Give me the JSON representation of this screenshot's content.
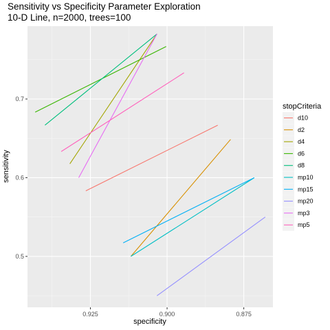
{
  "chart_data": {
    "type": "line",
    "title": "Sensitivity vs Specificity Parameter Exploration",
    "subtitle": "10-D Line, n=2000, trees=100",
    "xlabel": "specificity",
    "ylabel": "sensitivity",
    "x_reversed": true,
    "xlim": [
      0.8655,
      0.9455
    ],
    "ylim": [
      0.4353,
      0.7926
    ],
    "x_ticks": [
      0.925,
      0.9,
      0.875
    ],
    "x_tick_labels": [
      "0.925",
      "0.900",
      "0.875"
    ],
    "y_ticks": [
      0.5,
      0.6,
      0.7
    ],
    "y_tick_labels": [
      "0.5",
      "0.6",
      "0.7"
    ],
    "grid": true,
    "background": "#ebebeb",
    "legend": {
      "title": "stopCriteria",
      "position": "right"
    },
    "series": [
      {
        "name": "d10",
        "color": "#f8766d",
        "points": [
          [
            0.9265,
            0.5833
          ],
          [
            0.8835,
            0.6667
          ]
        ]
      },
      {
        "name": "d2",
        "color": "#d89000",
        "points": [
          [
            0.9118,
            0.5
          ],
          [
            0.8793,
            0.6486
          ]
        ]
      },
      {
        "name": "d4",
        "color": "#a3a500",
        "points": [
          [
            0.9317,
            0.6176
          ],
          [
            0.9033,
            0.7826
          ]
        ]
      },
      {
        "name": "d6",
        "color": "#39b600",
        "points": [
          [
            0.943,
            0.6833
          ],
          [
            0.9003,
            0.7667
          ]
        ]
      },
      {
        "name": "d8",
        "color": "#00bf7d",
        "points": [
          [
            0.9398,
            0.6667
          ],
          [
            0.9033,
            0.7826
          ]
        ]
      },
      {
        "name": "mp10",
        "color": "#00bfc4",
        "points": [
          [
            0.9118,
            0.5
          ],
          [
            0.8716,
            0.6
          ]
        ]
      },
      {
        "name": "mp15",
        "color": "#00b0f6",
        "points": [
          [
            0.9143,
            0.5172
          ],
          [
            0.8716,
            0.6
          ]
        ]
      },
      {
        "name": "mp20",
        "color": "#9590ff",
        "points": [
          [
            0.9033,
            0.45
          ],
          [
            0.868,
            0.55
          ]
        ]
      },
      {
        "name": "mp3",
        "color": "#e76bf3",
        "points": [
          [
            0.9288,
            0.6
          ],
          [
            0.9033,
            0.7826
          ]
        ]
      },
      {
        "name": "mp5",
        "color": "#ff62bc",
        "points": [
          [
            0.9345,
            0.6333
          ],
          [
            0.8945,
            0.7333
          ]
        ]
      }
    ]
  }
}
